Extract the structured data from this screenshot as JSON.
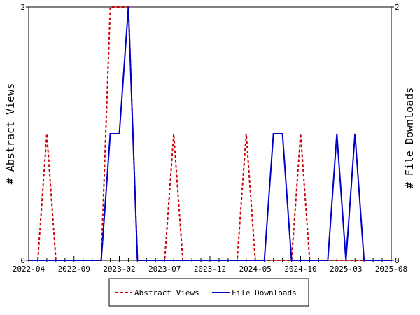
{
  "chart_data": {
    "type": "line",
    "title": "",
    "ylabel_left": "# Abstract Views",
    "ylabel_right": "# File Downloads",
    "x_ticks": [
      "2022-04",
      "2022-09",
      "2023-02",
      "2023-07",
      "2023-12",
      "2024-05",
      "2024-10",
      "2025-03",
      "2025-08"
    ],
    "left_y_ticks": [
      "0",
      "2"
    ],
    "right_y_ticks": [
      "0",
      "2"
    ],
    "y_range": [
      0,
      2
    ],
    "months": [
      "2022-04",
      "2022-05",
      "2022-06",
      "2022-07",
      "2022-08",
      "2022-09",
      "2022-10",
      "2022-11",
      "2022-12",
      "2023-01",
      "2023-02",
      "2023-03",
      "2023-04",
      "2023-05",
      "2023-06",
      "2023-07",
      "2023-08",
      "2023-09",
      "2023-10",
      "2023-11",
      "2023-12",
      "2024-01",
      "2024-02",
      "2024-03",
      "2024-04",
      "2024-05",
      "2024-06",
      "2024-07",
      "2024-08",
      "2024-09",
      "2024-10",
      "2024-11",
      "2024-12",
      "2025-01",
      "2025-02",
      "2025-03",
      "2025-04",
      "2025-05",
      "2025-06",
      "2025-07",
      "2025-08"
    ],
    "legend_position": "bottom",
    "series": [
      {
        "name": "Abstract Views",
        "axis": "left",
        "color": "#cc0000",
        "style": "dashed",
        "values": [
          0,
          0,
          1,
          0,
          0,
          0,
          0,
          0,
          0,
          2,
          2,
          2,
          0,
          0,
          0,
          0,
          1,
          0,
          0,
          0,
          0,
          0,
          0,
          0,
          1,
          0,
          0,
          0,
          0,
          0,
          1,
          0,
          0,
          0,
          0,
          0,
          0,
          0,
          0,
          0,
          0
        ]
      },
      {
        "name": "File Downloads",
        "axis": "right",
        "color": "#0000cc",
        "style": "solid",
        "values": [
          0,
          0,
          0,
          0,
          0,
          0,
          0,
          0,
          0,
          1,
          1,
          2,
          0,
          0,
          0,
          0,
          0,
          0,
          0,
          0,
          0,
          0,
          0,
          0,
          0,
          0,
          0,
          1,
          1,
          0,
          0,
          0,
          0,
          0,
          1,
          0,
          1,
          0,
          0,
          0,
          0
        ]
      }
    ]
  }
}
